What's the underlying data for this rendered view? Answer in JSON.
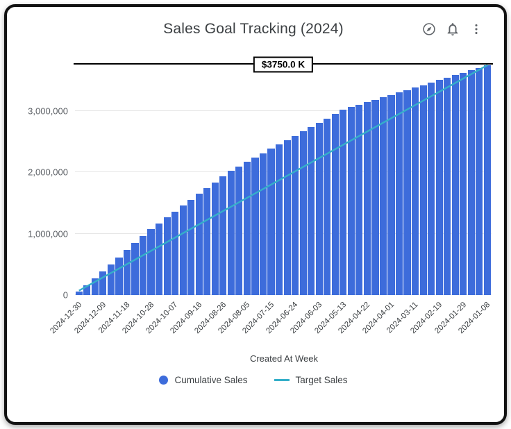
{
  "card": {
    "title": "Sales Goal Tracking (2024)"
  },
  "toolbar": {
    "icons": [
      {
        "name": "explore-compass-icon"
      },
      {
        "name": "notifications-bell-icon"
      },
      {
        "name": "more-vert-kebab-icon"
      }
    ]
  },
  "chart_data": {
    "type": "bar",
    "title": "Sales Goal Tracking (2024)",
    "xlabel": "Created At Week",
    "ylabel": "",
    "ylim": [
      0,
      3900000
    ],
    "grid": true,
    "legend_position": "bottom",
    "y_ticks": [
      0,
      1000000,
      2000000,
      3000000
    ],
    "y_tick_labels": [
      "0",
      "1,000,000",
      "2,000,000",
      "3,000,000"
    ],
    "x_tick_every": 3,
    "x_tick_labels": [
      "2024-12-30",
      "2024-12-09",
      "2024-11-18",
      "2024-10-28",
      "2024-10-07",
      "2024-09-16",
      "2024-08-26",
      "2024-08-05",
      "2024-07-15",
      "2024-06-24",
      "2024-06-03",
      "2024-05-13",
      "2024-04-22",
      "2024-04-01",
      "2024-03-11",
      "2024-02-19",
      "2024-01-29",
      "2024-01-08"
    ],
    "reference_line": {
      "value": 3750000,
      "label": "$3750.0 K",
      "color": "#000000"
    },
    "series": [
      {
        "name": "Cumulative Sales",
        "type": "bar",
        "color": "#3d6cdb",
        "values": [
          60000,
          155000,
          270000,
          385000,
          500000,
          615000,
          730000,
          845000,
          960000,
          1075000,
          1170000,
          1265000,
          1360000,
          1455000,
          1550000,
          1645000,
          1740000,
          1835000,
          1930000,
          2025000,
          2096000,
          2167000,
          2238000,
          2309000,
          2380000,
          2451000,
          2522000,
          2593000,
          2664000,
          2735000,
          2806000,
          2877000,
          2948000,
          3019000,
          3059000,
          3099000,
          3139000,
          3179000,
          3219000,
          3259000,
          3299000,
          3339000,
          3379000,
          3419000,
          3459000,
          3499000,
          3539000,
          3579000,
          3619000,
          3659000,
          3699000,
          3739000
        ]
      },
      {
        "name": "Target Sales",
        "type": "line",
        "color": "#35afc9",
        "values": [
          72000,
          144000,
          216000,
          288000,
          360000,
          432000,
          504000,
          576000,
          648000,
          720000,
          792000,
          864000,
          936000,
          1008000,
          1080000,
          1152000,
          1224000,
          1296000,
          1368000,
          1440000,
          1512000,
          1584000,
          1656000,
          1728000,
          1800000,
          1872000,
          1944000,
          2016000,
          2088000,
          2160000,
          2232000,
          2304000,
          2376000,
          2448000,
          2520000,
          2592000,
          2664000,
          2736000,
          2808000,
          2880000,
          2952000,
          3024000,
          3096000,
          3168000,
          3240000,
          3312000,
          3384000,
          3456000,
          3528000,
          3600000,
          3672000,
          3744000
        ]
      }
    ]
  },
  "legend": {
    "items": [
      {
        "label": "Cumulative Sales",
        "marker": "circle",
        "color": "#3d6cdb"
      },
      {
        "label": "Target Sales",
        "marker": "line",
        "color": "#35afc9"
      }
    ]
  }
}
